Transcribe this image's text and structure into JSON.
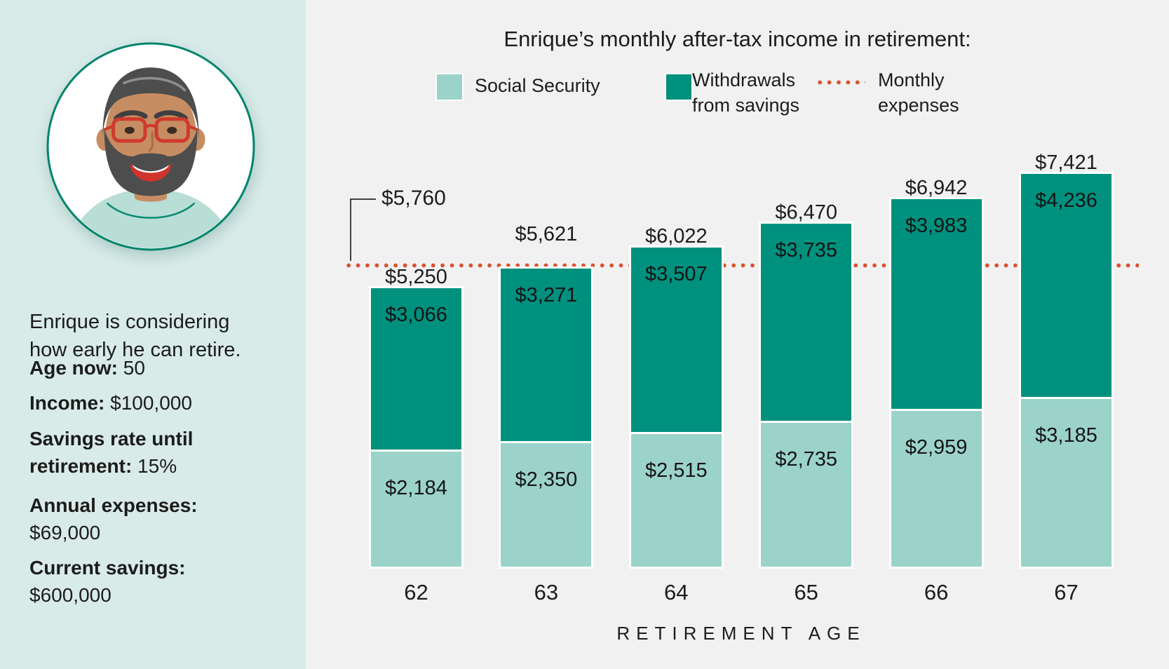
{
  "profile": {
    "intro_lines": [
      "Enrique is considering",
      "how early he can retire."
    ],
    "facts": [
      {
        "label_lines": [
          "Age now:"
        ],
        "value": "50",
        "value_inline": true
      },
      {
        "label_lines": [
          "Income:"
        ],
        "value": "$100,000",
        "value_inline": true
      },
      {
        "label_lines": [
          "Savings rate until",
          "retirement:"
        ],
        "value": "15%",
        "value_inline": true
      },
      {
        "label_lines": [
          "Annual expenses:"
        ],
        "value": "$69,000",
        "value_inline": false
      },
      {
        "label_lines": [
          "Current savings:"
        ],
        "value": "$600,000",
        "value_inline": false
      }
    ]
  },
  "chart_data": {
    "type": "bar",
    "stacked": true,
    "title": "Enrique’s monthly after-tax income in retirement:",
    "xlabel": "RETIREMENT AGE",
    "categories": [
      "62",
      "63",
      "64",
      "65",
      "66",
      "67"
    ],
    "series": [
      {
        "name": "Social Security",
        "color": "#9bd3cb",
        "values": [
          2184,
          2350,
          2515,
          2735,
          2959,
          3185
        ],
        "value_labels": [
          "$2,184",
          "$2,350",
          "$2,515",
          "$2,735",
          "$2,959",
          "$3,185"
        ]
      },
      {
        "name": "Withdrawals from savings",
        "color": "#00917e",
        "values": [
          3066,
          3271,
          3507,
          3735,
          3983,
          4236
        ],
        "value_labels": [
          "$3,066",
          "$3,271",
          "$3,507",
          "$3,735",
          "$3,983",
          "$4,236"
        ]
      }
    ],
    "totals": [
      5250,
      5621,
      6022,
      6470,
      6942,
      7421
    ],
    "total_labels": [
      "$5,250",
      "$5,621",
      "$6,022",
      "$6,470",
      "$6,942",
      "$7,421"
    ],
    "reference_line": {
      "name": "Monthly expenses",
      "value": 5760,
      "label": "$5,760",
      "color": "#d9512c",
      "style": "dotted"
    },
    "legend": [
      {
        "line1": "Social Security",
        "line2": "",
        "swatch": "#9bd3cb",
        "sample": "box"
      },
      {
        "line1": "Withdrawals",
        "line2": "from savings",
        "swatch": "#00917e",
        "sample": "box"
      },
      {
        "line1": "Monthly",
        "line2": "expenses",
        "swatch": "#d9512c",
        "sample": "dotted-line"
      }
    ],
    "ylim": [
      0,
      8000
    ],
    "grid": false,
    "legend_position": "top",
    "background": "#f1f1f1",
    "sidebar_background": "#d8ebe8"
  }
}
